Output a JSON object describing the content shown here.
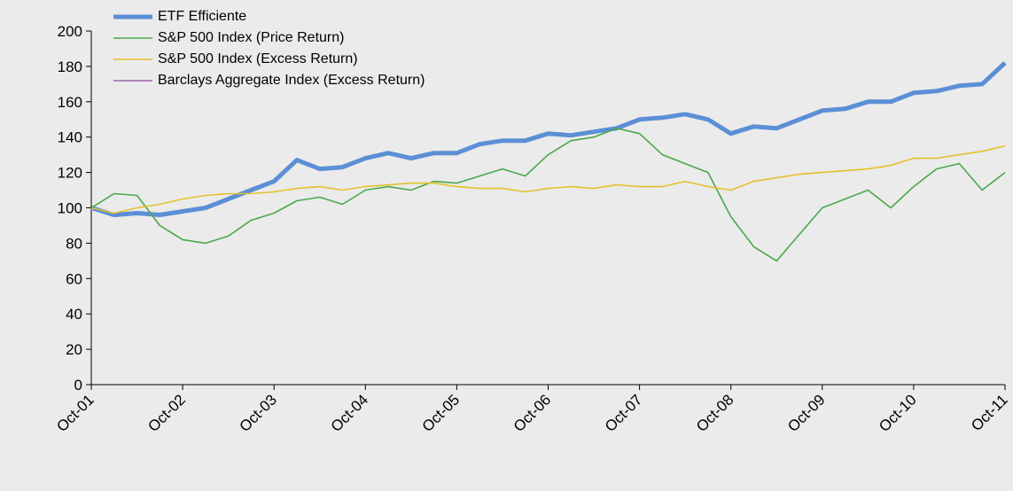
{
  "chart_data": {
    "type": "line",
    "categories": [
      "Oct-01",
      null,
      null,
      null,
      "Oct-02",
      null,
      null,
      null,
      "Oct-03",
      null,
      null,
      null,
      "Oct-04",
      null,
      null,
      null,
      "Oct-05",
      null,
      null,
      null,
      "Oct-06",
      null,
      null,
      null,
      "Oct-07",
      null,
      null,
      null,
      "Oct-08",
      null,
      null,
      null,
      "Oct-09",
      null,
      null,
      null,
      "Oct-10",
      null,
      null,
      null,
      "Oct-11"
    ],
    "series": [
      {
        "name": "ETF Efficiente",
        "color": "#5b8fd6",
        "values": [
          100,
          96,
          97,
          96,
          98,
          100,
          105,
          110,
          115,
          127,
          122,
          123,
          128,
          131,
          128,
          131,
          131,
          136,
          138,
          138,
          142,
          141,
          143,
          145,
          150,
          151,
          153,
          150,
          142,
          146,
          145,
          150,
          155,
          156,
          160,
          160,
          165,
          166,
          169,
          170,
          182
        ]
      },
      {
        "name": "S&P 500 Index (Price Return)",
        "color": "#4aa84a",
        "values": [
          100,
          108,
          107,
          90,
          82,
          80,
          84,
          93,
          97,
          104,
          106,
          102,
          110,
          112,
          110,
          115,
          114,
          118,
          122,
          118,
          130,
          138,
          140,
          145,
          142,
          130,
          125,
          120,
          95,
          78,
          70,
          85,
          100,
          105,
          110,
          100,
          112,
          122,
          125,
          110,
          120
        ]
      },
      {
        "name": "S&P 500 Index (Excess Return)",
        "color": "#e6c030",
        "values": [
          100,
          97,
          100,
          102,
          105,
          107,
          108,
          108,
          109,
          111,
          112,
          110,
          112,
          113,
          114,
          114,
          112,
          111,
          111,
          109,
          111,
          112,
          111,
          113,
          112,
          112,
          115,
          112,
          110,
          115,
          117,
          119,
          120,
          121,
          122,
          124,
          128,
          128,
          130,
          132,
          135
        ]
      },
      {
        "name": "Barclays Aggregate Index (Excess Return)",
        "color": "#9966aa",
        "values": [
          null,
          null,
          null,
          null,
          null,
          null,
          null,
          null,
          null,
          null,
          null,
          null,
          null,
          null,
          null,
          null,
          null,
          null,
          null,
          null,
          null,
          null,
          null,
          null,
          null,
          null,
          null,
          null,
          null,
          null,
          null,
          null,
          null,
          null,
          null,
          null,
          null,
          null,
          null,
          null,
          null
        ]
      }
    ],
    "ylim": [
      0,
      200
    ],
    "yticks": [
      0,
      20,
      40,
      60,
      80,
      100,
      120,
      140,
      160,
      180,
      200
    ]
  }
}
